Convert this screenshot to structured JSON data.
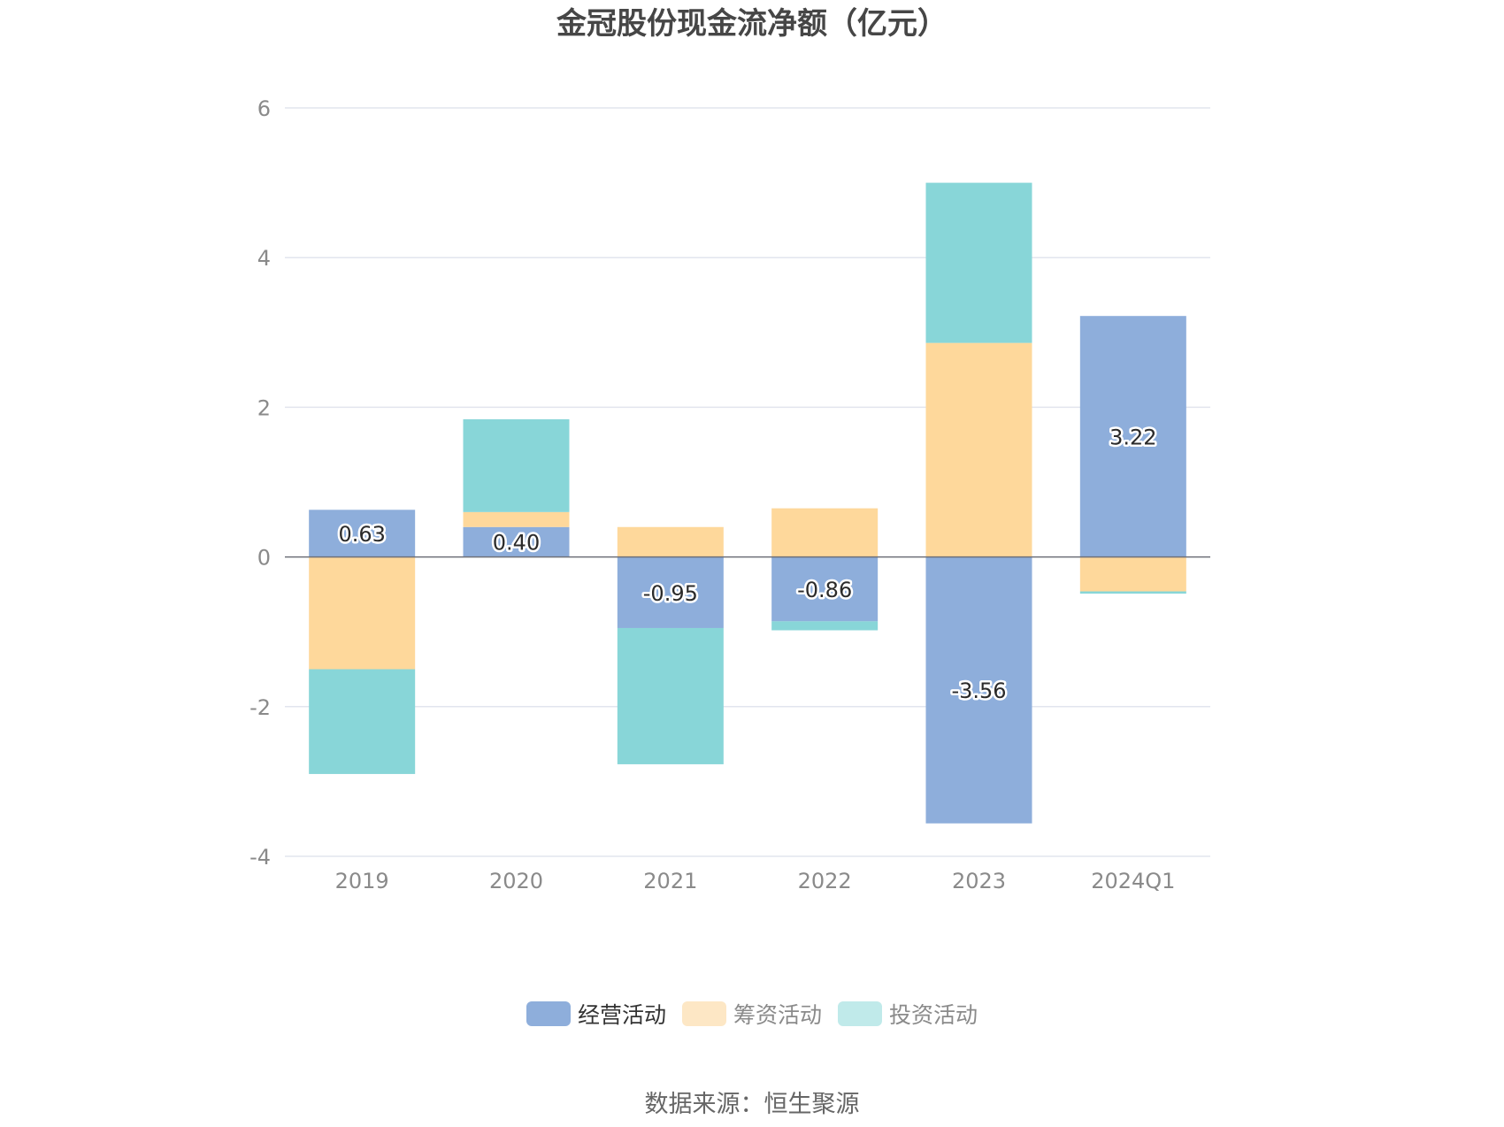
{
  "chart_data": {
    "type": "bar",
    "stacked": true,
    "title": "金冠股份现金流净额（亿元）",
    "categories": [
      "2019",
      "2020",
      "2021",
      "2022",
      "2023",
      "2024Q1"
    ],
    "series": [
      {
        "name": "经营活动",
        "color": "#8eaedb",
        "values": [
          0.63,
          0.4,
          -0.95,
          -0.86,
          -3.56,
          3.22
        ],
        "labels": [
          "0.63",
          "0.40",
          "-0.95",
          "-0.86",
          "-3.56",
          "3.22"
        ]
      },
      {
        "name": "筹资活动",
        "color": "#fed89b",
        "values": [
          -1.5,
          0.2,
          0.4,
          0.65,
          2.86,
          -0.46
        ]
      },
      {
        "name": "投资活动",
        "color": "#88d6d8",
        "values": [
          -1.4,
          1.24,
          -1.82,
          -0.12,
          2.14,
          -0.03
        ]
      }
    ],
    "legend_colors": [
      "#8eaedb",
      "#fde7c5",
      "#c0eaea"
    ],
    "ylim": [
      -4,
      6
    ],
    "yticks": [
      -4,
      -2,
      0,
      2,
      4,
      6
    ],
    "ytick_labels": [
      "-4",
      "-2",
      "0",
      "2",
      "4",
      "6"
    ],
    "xlabel": "",
    "ylabel": "",
    "grid": true,
    "legend_position": "bottom"
  },
  "source_text": "数据来源：恒生聚源"
}
